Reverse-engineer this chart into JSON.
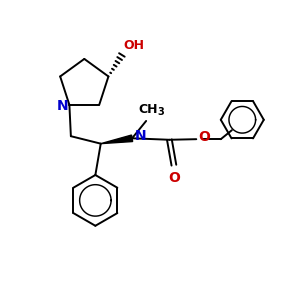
{
  "bg_color": "#ffffff",
  "bond_color": "#000000",
  "N_color": "#0000cc",
  "O_color": "#cc0000",
  "lw": 1.4,
  "figsize": [
    3.0,
    3.0
  ],
  "dpi": 100,
  "xlim": [
    0,
    10
  ],
  "ylim": [
    0,
    10
  ]
}
